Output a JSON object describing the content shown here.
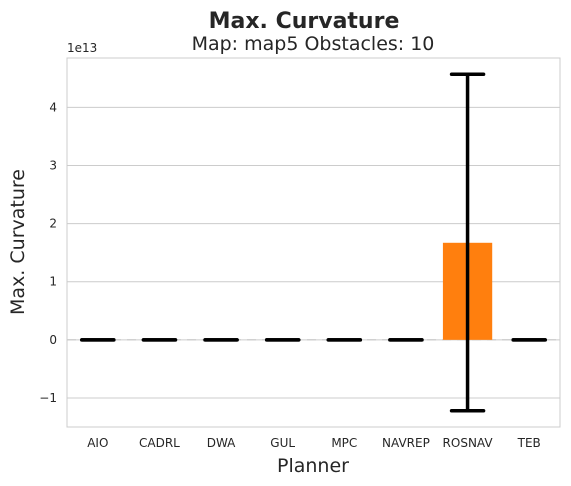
{
  "chart_data": {
    "type": "bar",
    "suptitle": "Max. Curvature",
    "title": "Map: map5 Obstacles: 10",
    "xlabel": "Planner",
    "ylabel": "Max. Curvature",
    "y_offset_label": "1e13",
    "categories": [
      "AIO",
      "CADRL",
      "DWA",
      "GUL",
      "MPC",
      "NAVREP",
      "ROSNAV",
      "TEB"
    ],
    "values": [
      0,
      0,
      0,
      0,
      0,
      0,
      1.67,
      0
    ],
    "error_low": [
      0,
      0,
      0,
      0,
      0,
      0,
      -1.22,
      0
    ],
    "error_high": [
      0,
      0,
      0,
      0,
      0,
      0,
      4.57,
      0
    ],
    "value_scale": "1e13",
    "bar_colors": [
      "#1f77b4",
      "#aec7e8",
      "#ff7f0e",
      "#ffbb78",
      "#2ca02c",
      "#98df8a",
      "#ff7f0e",
      "#ffbb78"
    ],
    "reference_line": 0,
    "ylim": [
      -1.5,
      4.85
    ],
    "yticks": [
      -1,
      0,
      1,
      2,
      3,
      4
    ],
    "ytick_labels": [
      "−1",
      "0",
      "1",
      "2",
      "3",
      "4"
    ],
    "grid": "horizontal",
    "style": "whitegrid"
  }
}
